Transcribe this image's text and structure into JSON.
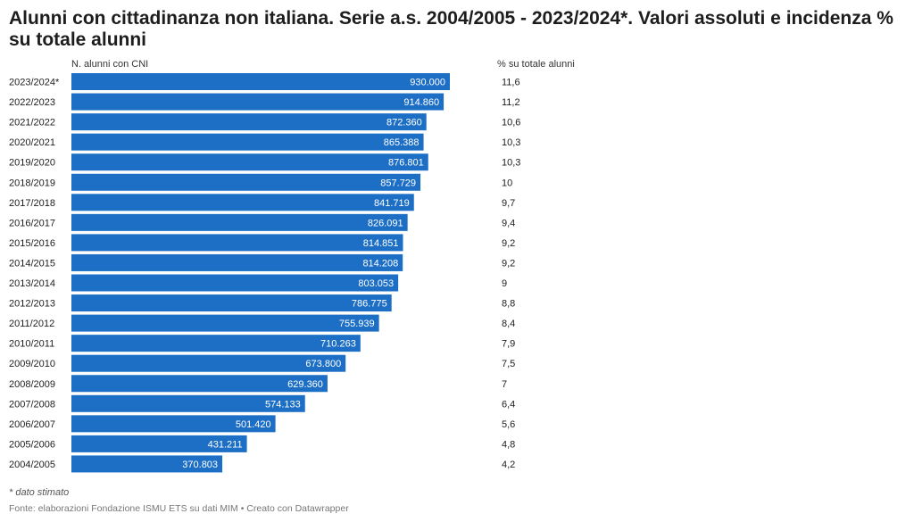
{
  "title": "Alunni con cittadinanza non italiana. Serie a.s. 2004/2005 - 2023/2024*. Valori assoluti e incidenza % su totale alunni",
  "col_header_left": "N. alunni con CNI",
  "col_header_right": "% su totale alunni",
  "footnote": "* dato stimato",
  "source": "Fonte: elaborazioni Fondazione ISMU ETS su dati MIM • Creato con Datawrapper",
  "colors": {
    "bar": "#1d6fc6",
    "bar_label": "#ffffff",
    "text": "#1d1d1d"
  },
  "chart_data": {
    "type": "bar",
    "orientation": "horizontal",
    "categories": [
      "2023/2024*",
      "2022/2023",
      "2021/2022",
      "2020/2021",
      "2019/2020",
      "2018/2019",
      "2017/2018",
      "2016/2017",
      "2015/2016",
      "2014/2015",
      "2013/2014",
      "2012/2013",
      "2011/2012",
      "2010/2011",
      "2009/2010",
      "2008/2009",
      "2007/2008",
      "2006/2007",
      "2005/2006",
      "2004/2005"
    ],
    "series": [
      {
        "values": [
          930000,
          914860,
          872360,
          865388,
          876801,
          857729,
          841719,
          826091,
          814851,
          814208,
          803053,
          786775,
          755939,
          710263,
          673800,
          629360,
          574133,
          501420,
          431211,
          370803
        ],
        "labels": [
          "930.000",
          "914.860",
          "872.360",
          "865.388",
          "876.801",
          "857.729",
          "841.719",
          "826.091",
          "814.851",
          "814.208",
          "803.053",
          "786.775",
          "755.939",
          "710.263",
          "673.800",
          "629.360",
          "574.133",
          "501.420",
          "431.211",
          "370.803"
        ]
      }
    ],
    "percent_labels": [
      "11,6",
      "11,2",
      "10,6",
      "10,3",
      "10,3",
      "10",
      "9,7",
      "9,4",
      "9,2",
      "9,2",
      "9",
      "8,8",
      "8,4",
      "7,9",
      "7,5",
      "7",
      "6,4",
      "5,6",
      "4,8",
      "4,2"
    ],
    "xlim": [
      0,
      930000
    ],
    "grid": false,
    "legend": "none"
  }
}
